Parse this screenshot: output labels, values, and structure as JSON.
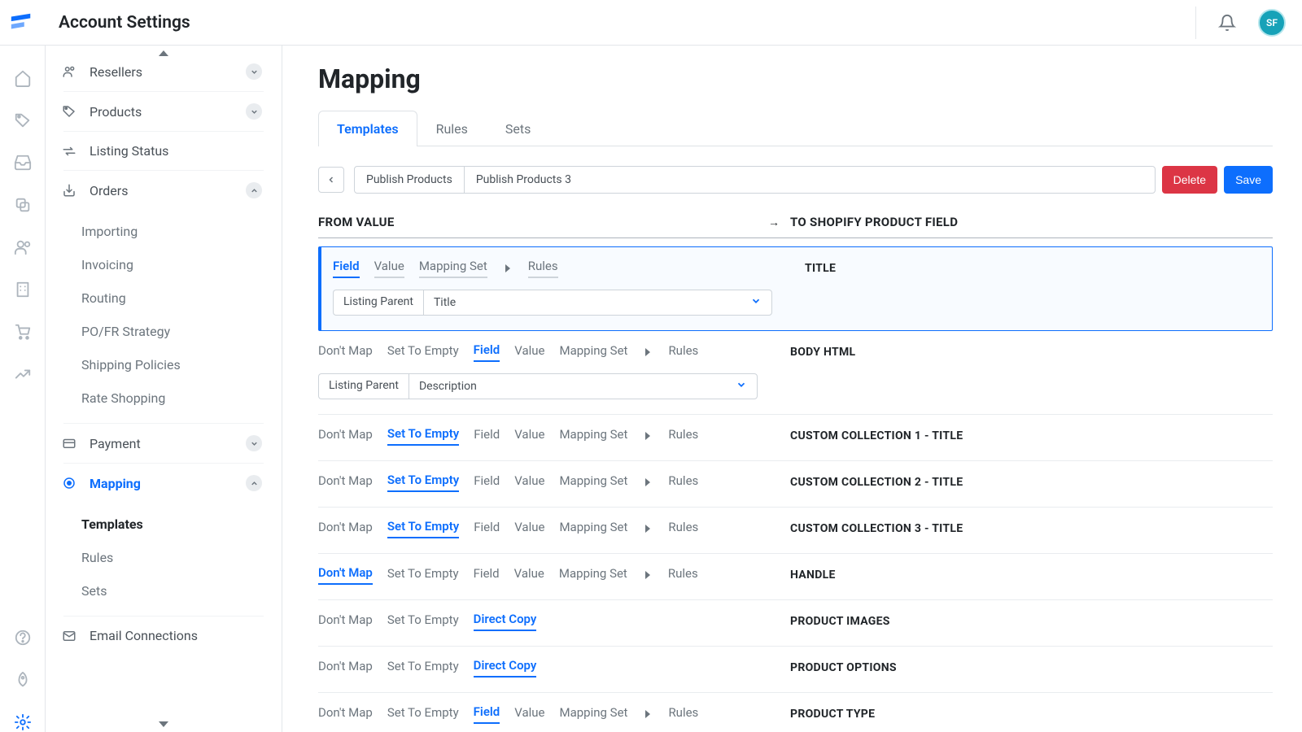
{
  "header": {
    "page_title": "Account Settings",
    "avatar_initials": "SF"
  },
  "rail": {
    "icons": [
      "home",
      "tag",
      "inbox",
      "copy",
      "users",
      "building",
      "cart",
      "chart",
      "help",
      "rocket",
      "gear"
    ]
  },
  "sidebar": {
    "groups": [
      {
        "icon": "users",
        "label": "Resellers",
        "chev": "down"
      },
      {
        "icon": "tag",
        "label": "Products",
        "chev": "down"
      },
      {
        "icon": "exchange",
        "label": "Listing Status"
      },
      {
        "icon": "download",
        "label": "Orders",
        "chev": "up",
        "children": [
          "Importing",
          "Invoicing",
          "Routing",
          "PO/FR Strategy",
          "Shipping Policies",
          "Rate Shopping"
        ]
      },
      {
        "icon": "card",
        "label": "Payment",
        "chev": "down"
      },
      {
        "icon": "target",
        "label": "Mapping",
        "chev": "up",
        "bold": true,
        "target": true,
        "children": [
          "Templates",
          "Rules",
          "Sets"
        ],
        "active_child": "Templates"
      },
      {
        "icon": "mail",
        "label": "Email Connections"
      }
    ]
  },
  "main": {
    "title": "Mapping",
    "tabs": [
      "Templates",
      "Rules",
      "Sets"
    ],
    "active_tab": "Templates",
    "breadcrumb_tag": "Publish Products",
    "breadcrumb_value": "Publish Products 3",
    "buttons": {
      "delete": "Delete",
      "save": "Save"
    },
    "cols": {
      "from": "FROM VALUE",
      "to": "TO SHOPIFY PRODUCT FIELD"
    },
    "rows": [
      {
        "highlight": true,
        "chips": [
          "Field",
          "Value",
          "Mapping Set",
          "▸",
          "Rules"
        ],
        "active": "Field",
        "grey": [
          "Value",
          "Mapping Set",
          "Rules"
        ],
        "select_prefix": "Listing Parent",
        "select_value": "Title",
        "to": "TITLE"
      },
      {
        "chips": [
          "Don't Map",
          "Set To Empty",
          "Field",
          "Value",
          "Mapping Set",
          "▸",
          "Rules"
        ],
        "active": "Field",
        "select_prefix": "Listing Parent",
        "select_value": "Description",
        "to": "BODY HTML"
      },
      {
        "chips": [
          "Don't Map",
          "Set To Empty",
          "Field",
          "Value",
          "Mapping Set",
          "▸",
          "Rules"
        ],
        "active": "Set To Empty",
        "to": "CUSTOM COLLECTION 1 - TITLE"
      },
      {
        "chips": [
          "Don't Map",
          "Set To Empty",
          "Field",
          "Value",
          "Mapping Set",
          "▸",
          "Rules"
        ],
        "active": "Set To Empty",
        "to": "CUSTOM COLLECTION 2 - TITLE"
      },
      {
        "chips": [
          "Don't Map",
          "Set To Empty",
          "Field",
          "Value",
          "Mapping Set",
          "▸",
          "Rules"
        ],
        "active": "Set To Empty",
        "to": "CUSTOM COLLECTION 3 - TITLE"
      },
      {
        "chips": [
          "Don't Map",
          "Set To Empty",
          "Field",
          "Value",
          "Mapping Set",
          "▸",
          "Rules"
        ],
        "active": "Don't Map",
        "to": "HANDLE"
      },
      {
        "chips": [
          "Don't Map",
          "Set To Empty",
          "Direct Copy"
        ],
        "active": "Direct Copy",
        "to": "PRODUCT IMAGES"
      },
      {
        "chips": [
          "Don't Map",
          "Set To Empty",
          "Direct Copy"
        ],
        "active": "Direct Copy",
        "to": "PRODUCT OPTIONS"
      },
      {
        "chips": [
          "Don't Map",
          "Set To Empty",
          "Field",
          "Value",
          "Mapping Set",
          "▸",
          "Rules"
        ],
        "active": "Field",
        "to": "PRODUCT TYPE"
      }
    ]
  }
}
